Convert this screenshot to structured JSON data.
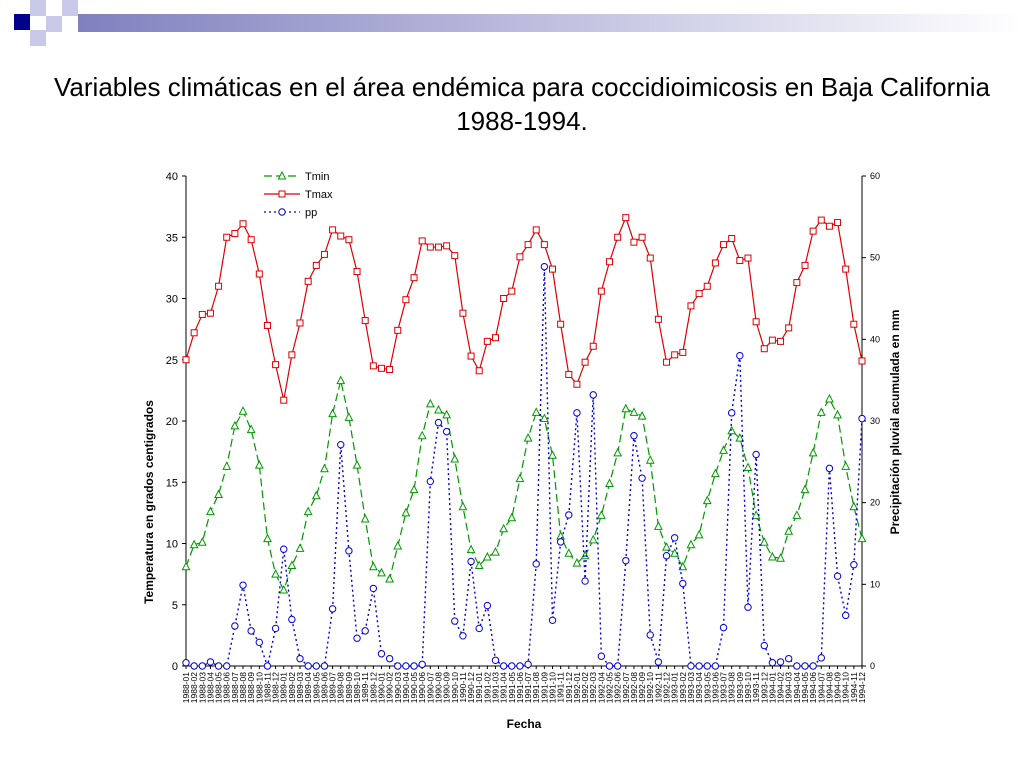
{
  "slide": {
    "title": "Variables climáticas en el área endémica para coccidioimicosis en Baja California 1988-1994.",
    "decor_colors": [
      "#00008B",
      "#8080C0",
      "#C8C8E8"
    ]
  },
  "chart_data": {
    "type": "line",
    "title": "",
    "xlabel": "Fecha",
    "ylabel": "Temperatura en grados centigrados",
    "y2label": "Precipitación pluvial acumulada en mm",
    "ylim": [
      0,
      40
    ],
    "y2lim": [
      0,
      60
    ],
    "yticks": [
      0,
      5,
      10,
      15,
      20,
      25,
      30,
      35,
      40
    ],
    "y2ticks": [
      0,
      10,
      20,
      30,
      40,
      50,
      60
    ],
    "grid": false,
    "legend": "top-left",
    "x": [
      "1988-01",
      "1988-02",
      "1988-03",
      "1988-04",
      "1988-05",
      "1988-06",
      "1988-07",
      "1988-08",
      "1988-09",
      "1988-10",
      "1988-11",
      "1988-12",
      "1989-01",
      "1989-02",
      "1989-03",
      "1989-04",
      "1989-05",
      "1989-06",
      "1989-07",
      "1989-08",
      "1989-09",
      "1989-10",
      "1989-11",
      "1989-12",
      "1990-01",
      "1990-02",
      "1990-03",
      "1990-04",
      "1990-05",
      "1990-06",
      "1990-07",
      "1990-08",
      "1990-09",
      "1990-10",
      "1990-11",
      "1990-12",
      "1991-01",
      "1991-02",
      "1991-03",
      "1991-04",
      "1991-05",
      "1991-06",
      "1991-07",
      "1991-08",
      "1991-09",
      "1991-10",
      "1991-11",
      "1991-12",
      "1992-01",
      "1992-02",
      "1992-03",
      "1992-04",
      "1992-05",
      "1992-06",
      "1992-07",
      "1992-08",
      "1992-09",
      "1992-10",
      "1992-11",
      "1992-12",
      "1993-01",
      "1993-02",
      "1993-03",
      "1993-04",
      "1993-05",
      "1993-06",
      "1993-07",
      "1993-08",
      "1993-09",
      "1993-10",
      "1993-11",
      "1993-12",
      "1994-01",
      "1994-02",
      "1994-03",
      "1994-04",
      "1994-05",
      "1994-06",
      "1994-07",
      "1994-08",
      "1994-09",
      "1994-10",
      "1994-11",
      "1994-12"
    ],
    "series": [
      {
        "name": "Tmin",
        "axis": "left",
        "color": "#009900",
        "marker": "triangle",
        "dash": "dashed",
        "values": [
          8.1,
          9.9,
          10.1,
          12.6,
          14.0,
          16.3,
          19.6,
          20.8,
          19.3,
          16.4,
          10.4,
          7.5,
          6.2,
          8.2,
          9.6,
          12.6,
          13.9,
          16.1,
          20.6,
          23.3,
          20.3,
          16.4,
          12.0,
          8.1,
          7.6,
          7.1,
          9.8,
          12.5,
          14.4,
          18.8,
          21.4,
          20.9,
          20.5,
          16.9,
          13.0,
          9.5,
          8.2,
          8.9,
          9.3,
          11.2,
          12.1,
          15.3,
          18.6,
          20.7,
          20.2,
          17.2,
          10.6,
          9.2,
          8.4,
          9.0,
          10.3,
          12.3,
          14.9,
          17.4,
          21.0,
          20.7,
          20.4,
          16.8,
          11.4,
          9.7,
          9.2,
          8.1,
          9.9,
          10.7,
          13.5,
          15.7,
          17.6,
          19.2,
          18.6,
          16.2,
          12.3,
          10.1,
          8.9,
          8.8,
          11.0,
          12.3,
          14.4,
          17.4,
          20.7,
          21.8,
          20.5,
          16.3,
          13.0,
          10.4
        ]
      },
      {
        "name": "Tmax",
        "axis": "left",
        "color": "#DD0000",
        "marker": "square",
        "dash": "solid",
        "values": [
          25.0,
          27.2,
          28.7,
          28.8,
          31.0,
          35.0,
          35.3,
          36.1,
          34.8,
          32.0,
          27.8,
          24.6,
          21.7,
          25.4,
          28.0,
          31.4,
          32.7,
          33.6,
          35.6,
          35.1,
          34.8,
          32.2,
          28.2,
          24.5,
          24.3,
          24.2,
          27.4,
          29.9,
          31.7,
          34.7,
          34.2,
          34.2,
          34.3,
          33.5,
          28.8,
          25.3,
          24.1,
          26.5,
          26.8,
          30.0,
          30.6,
          33.4,
          34.4,
          35.6,
          34.4,
          32.4,
          27.9,
          23.8,
          23.0,
          24.8,
          26.1,
          30.6,
          33.0,
          35.0,
          36.6,
          34.6,
          35.0,
          33.3,
          28.3,
          24.8,
          25.4,
          25.6,
          29.4,
          30.4,
          31.0,
          32.9,
          34.4,
          34.9,
          33.1,
          33.3,
          28.1,
          25.9,
          26.6,
          26.5,
          27.6,
          31.3,
          32.7,
          35.5,
          36.4,
          35.9,
          36.2,
          32.4,
          27.9,
          24.9
        ]
      },
      {
        "name": "pp",
        "axis": "right",
        "color": "#0000DD",
        "marker": "circle",
        "dash": "dotted",
        "values": [
          0.4,
          0.0,
          0.0,
          0.5,
          0.0,
          0.0,
          4.9,
          9.9,
          4.3,
          2.9,
          0.0,
          4.6,
          14.3,
          5.7,
          0.9,
          0.0,
          0.0,
          0.0,
          7.0,
          27.1,
          14.1,
          3.4,
          4.3,
          9.5,
          1.5,
          0.9,
          0.0,
          0.0,
          0.0,
          0.2,
          22.6,
          29.8,
          28.7,
          5.5,
          3.7,
          12.8,
          4.6,
          7.4,
          0.7,
          0.0,
          0.0,
          0.0,
          0.2,
          12.5,
          48.9,
          5.6,
          15.2,
          18.5,
          31.0,
          10.4,
          33.2,
          1.2,
          0.0,
          0.0,
          12.9,
          28.2,
          23.0,
          3.8,
          0.5,
          13.5,
          15.7,
          10.1,
          0.0,
          0.0,
          0.0,
          0.0,
          4.7,
          31.0,
          38.0,
          7.2,
          25.9,
          2.5,
          0.4,
          0.5,
          0.9,
          0.0,
          0.0,
          0.0,
          1.0,
          24.2,
          11.0,
          6.2,
          12.4,
          30.3
        ]
      }
    ]
  }
}
